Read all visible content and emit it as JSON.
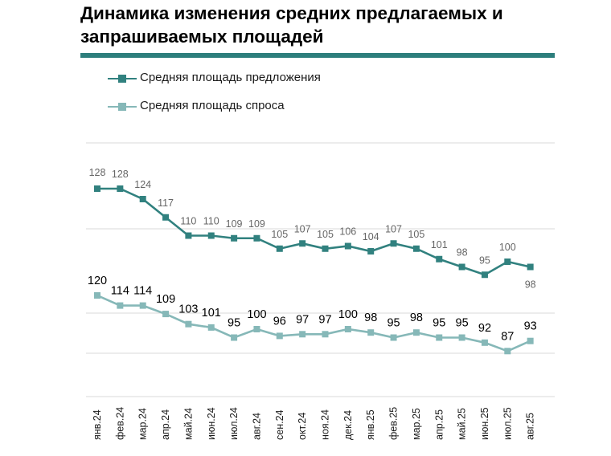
{
  "title": {
    "line1": "Динамика изменения средних предлагаемых и",
    "line2": "запрашиваемых площадей"
  },
  "colors": {
    "offer": "#31817f",
    "demand": "#86b8b8",
    "rule": "#2d7e7c",
    "axis": "#bfbfbf",
    "offer_label": "#666666",
    "demand_label": "#000000"
  },
  "legend": {
    "offer": "Средняя площадь предложения",
    "demand": "Средняя площадь спроса"
  },
  "chart_data": {
    "type": "line",
    "title": "Динамика изменения средних предлагаемых и запрашиваемых площадей",
    "xlabel": "",
    "ylabel": "",
    "grid": true,
    "legend_position": "top-left",
    "categories": [
      "янв.24",
      "фев.24",
      "мар.24",
      "апр.24",
      "май.24",
      "июн.24",
      "июл.24",
      "авг.24",
      "сен.24",
      "окт.24",
      "ноя.24",
      "дек.24",
      "янв.25",
      "фев.25",
      "мар.25",
      "апр.25",
      "май.25",
      "июн.25",
      "июл.25",
      "авг.25"
    ],
    "series": [
      {
        "name": "Средняя площадь предложения",
        "values": [
          128,
          128,
          124,
          117,
          110,
          110,
          109,
          109,
          105,
          107,
          105,
          106,
          104,
          107,
          105,
          101,
          98,
          95,
          100,
          98
        ],
        "labels": [
          "128",
          "128",
          "124",
          "117",
          "110",
          "110",
          "109",
          "109",
          "105",
          "107",
          "105",
          "106",
          "104",
          "107",
          "105",
          "101",
          "98",
          "95",
          "100",
          "98"
        ]
      },
      {
        "name": "Средняя площадь спроса",
        "values": [
          120,
          114,
          114,
          109,
          103,
          101,
          95,
          100,
          96,
          97,
          97,
          100,
          98,
          95,
          98,
          95,
          95,
          92,
          87,
          93
        ],
        "labels": [
          "120",
          "114",
          "114",
          "109",
          "103",
          "101",
          "95",
          "100",
          "96",
          "97",
          "97",
          "100",
          "98",
          "95",
          "98",
          "95",
          "95",
          "92",
          "87",
          "93"
        ]
      }
    ]
  }
}
